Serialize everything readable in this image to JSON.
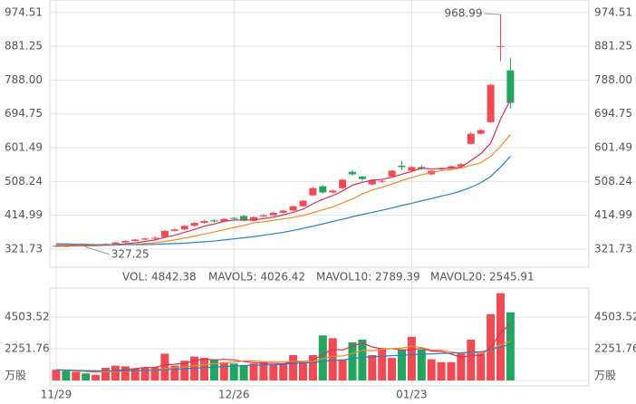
{
  "chart_data": [
    {
      "type": "candlestick",
      "categories": [
        "11/29",
        null,
        null,
        null,
        null,
        null,
        null,
        null,
        null,
        null,
        null,
        null,
        null,
        null,
        null,
        null,
        null,
        null,
        "12/26",
        null,
        null,
        null,
        null,
        null,
        null,
        null,
        null,
        null,
        null,
        null,
        null,
        null,
        null,
        null,
        null,
        null,
        "01/23",
        null,
        null,
        null,
        null,
        null,
        null,
        null,
        null,
        null,
        null
      ],
      "open": [
        329,
        331,
        330,
        332,
        330,
        333,
        336,
        340,
        344,
        348,
        351,
        355,
        372,
        376,
        386,
        394,
        401,
        398,
        408,
        413,
        400,
        412,
        415,
        422,
        428,
        440,
        470,
        495,
        478,
        490,
        535,
        522,
        500,
        508,
        522,
        552,
        538,
        548,
        528,
        542,
        546,
        550,
        612,
        640,
        672,
        880,
        815
      ],
      "close": [
        331,
        330,
        332,
        330,
        333,
        336,
        340,
        344,
        348,
        351,
        353,
        372,
        376,
        386,
        394,
        399,
        398,
        405,
        405,
        400,
        410,
        415,
        422,
        428,
        440,
        455,
        490,
        478,
        483,
        513,
        528,
        515,
        512,
        510,
        538,
        548,
        548,
        543,
        538,
        544,
        550,
        556,
        640,
        650,
        775,
        882,
        725
      ],
      "high": [
        334,
        333,
        334,
        333,
        335,
        338,
        342,
        346,
        350,
        353,
        356,
        374,
        379,
        388,
        396,
        402,
        404,
        407,
        410,
        416,
        412,
        418,
        424,
        430,
        442,
        457,
        493,
        498,
        486,
        516,
        540,
        524,
        514,
        514,
        540,
        565,
        550,
        553,
        540,
        548,
        553,
        560,
        645,
        653,
        778,
        968.99,
        850
      ],
      "low": [
        328,
        328,
        329,
        327.25,
        329,
        331,
        334,
        338,
        342,
        346,
        349,
        353,
        370,
        374,
        384,
        392,
        395,
        396,
        403,
        398,
        398,
        410,
        413,
        420,
        426,
        438,
        468,
        475,
        475,
        487,
        524,
        510,
        497,
        505,
        520,
        540,
        535,
        540,
        525,
        540,
        543,
        548,
        610,
        638,
        670,
        840,
        710
      ],
      "up_color": "#f04b55",
      "down_color": "#22a65f",
      "lines": [
        {
          "color": "#d6305a",
          "values": [
            330,
            330,
            331,
            331,
            331,
            332,
            334,
            336,
            339,
            343,
            347,
            354,
            360,
            368,
            376,
            385,
            391,
            398,
            402,
            402,
            402,
            406,
            410,
            416,
            423,
            432,
            447,
            459,
            469,
            482,
            498,
            506,
            512,
            514,
            520,
            528,
            536,
            545,
            543,
            544,
            545,
            548,
            566,
            585,
            614,
            680,
            734
          ]
        },
        {
          "color": "#f08a2c",
          "values": [
            333,
            333,
            333,
            333,
            332,
            332,
            333,
            334,
            335,
            337,
            339,
            343,
            347,
            352,
            357,
            363,
            369,
            375,
            381,
            387,
            394,
            397,
            401,
            405,
            409,
            414,
            422,
            430,
            438,
            449,
            460,
            474,
            485,
            492,
            501,
            511,
            519,
            527,
            533,
            538,
            541,
            545,
            553,
            560,
            578,
            605,
            638
          ]
        },
        {
          "color": "#2a7fc0",
          "values": [
            336,
            336,
            335,
            335,
            334,
            334,
            334,
            334,
            334,
            334,
            335,
            336,
            337,
            338,
            340,
            342,
            344,
            347,
            350,
            353,
            356,
            360,
            364,
            368,
            373,
            379,
            385,
            391,
            398,
            404,
            411,
            417,
            423,
            429,
            435,
            442,
            448,
            455,
            461,
            468,
            474,
            482,
            492,
            505,
            522,
            548,
            578
          ]
        }
      ],
      "max_label": "968.99",
      "min_label": "327.25",
      "ylim": [
        271.7,
        1009
      ],
      "yticks": [
        321.73,
        414.99,
        508.24,
        601.49,
        694.75,
        {
          "value": 788,
          "label": "788.00"
        },
        881.25,
        974.51
      ],
      "grid": true
    },
    {
      "type": "bar",
      "title": "VOL: 4842.38",
      "title_color": "#999999",
      "values": [
        760,
        680,
        620,
        500,
        400,
        900,
        1050,
        1000,
        840,
        900,
        940,
        1900,
        1050,
        1400,
        1700,
        1600,
        1500,
        1300,
        1200,
        1100,
        1200,
        1300,
        1100,
        1200,
        1800,
        1300,
        1800,
        3200,
        3000,
        1500,
        2700,
        2900,
        1800,
        2300,
        1600,
        2200,
        3100,
        2200,
        1500,
        1300,
        1300,
        1900,
        2900,
        1900,
        4700,
        6200,
        4842.38
      ],
      "series": [
        {
          "name": "MAVOL5: 4026.42",
          "color": "#d6305a",
          "values": [
            760,
            720,
            690,
            640,
            600,
            620,
            690,
            770,
            840,
            920,
            930,
            1120,
            1150,
            1220,
            1400,
            1530,
            1450,
            1500,
            1460,
            1340,
            1260,
            1220,
            1220,
            1200,
            1320,
            1340,
            1420,
            1860,
            2220,
            2160,
            2440,
            2660,
            2380,
            2240,
            2260,
            2160,
            2200,
            2280,
            2080,
            2060,
            1880,
            1640,
            1780,
            1780,
            2340,
            3380,
            4026.42
          ]
        },
        {
          "name": "MAVOL10: 2789.39",
          "color": "#f08a2c",
          "values": [
            760,
            730,
            700,
            670,
            640,
            620,
            640,
            660,
            680,
            700,
            740,
            840,
            910,
            960,
            1040,
            1110,
            1190,
            1250,
            1310,
            1380,
            1400,
            1340,
            1340,
            1330,
            1360,
            1370,
            1360,
            1540,
            1720,
            1740,
            1920,
            2140,
            2120,
            2210,
            2260,
            2300,
            2430,
            2330,
            2160,
            2150,
            2020,
            1930,
            1990,
            1930,
            2180,
            2520,
            2789.39
          ]
        },
        {
          "name": "MAVOL20: 2545.91",
          "color": "#2a7fc0",
          "values": [
            760,
            740,
            720,
            700,
            690,
            680,
            680,
            690,
            700,
            710,
            720,
            760,
            800,
            830,
            870,
            910,
            950,
            990,
            1020,
            1060,
            1080,
            1100,
            1120,
            1150,
            1200,
            1240,
            1280,
            1350,
            1420,
            1460,
            1550,
            1640,
            1680,
            1720,
            1760,
            1780,
            1840,
            1860,
            1880,
            1920,
            1940,
            1960,
            2000,
            2040,
            2180,
            2380,
            2545.91
          ]
        }
      ],
      "ylim": [
        0,
        6560
      ],
      "yticks": [
        {
          "value": 0,
          "label": "万股"
        },
        2251.76,
        4503.52
      ],
      "grid": true
    }
  ]
}
